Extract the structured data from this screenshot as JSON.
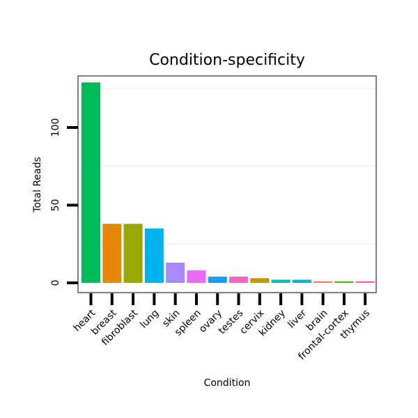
{
  "chart_data": {
    "type": "bar",
    "title": "Condition-specificity",
    "xlabel": "Condition",
    "ylabel": "Total Reads",
    "ylim": [
      -6,
      134
    ],
    "yticks": [
      0,
      50,
      100
    ],
    "gridlines": [
      25,
      75,
      125
    ],
    "categories": [
      "heart",
      "breast",
      "fibroblast",
      "lung",
      "skin",
      "spleen",
      "ovary",
      "testes",
      "cervix",
      "kidney",
      "liver",
      "brain",
      "frontal-cortex",
      "thymus"
    ],
    "values": [
      129,
      38,
      38,
      35,
      13,
      8,
      4,
      4,
      3,
      2,
      2,
      1,
      1,
      1
    ],
    "colors": [
      "#00BA5A",
      "#E58700",
      "#99A800",
      "#00B3EB",
      "#A58AFF",
      "#E76BF3",
      "#1F9BFF",
      "#F265C7",
      "#C59900",
      "#00BDB7",
      "#00B2D4",
      "#F8766D",
      "#5BB300",
      "#FC61A8"
    ]
  }
}
